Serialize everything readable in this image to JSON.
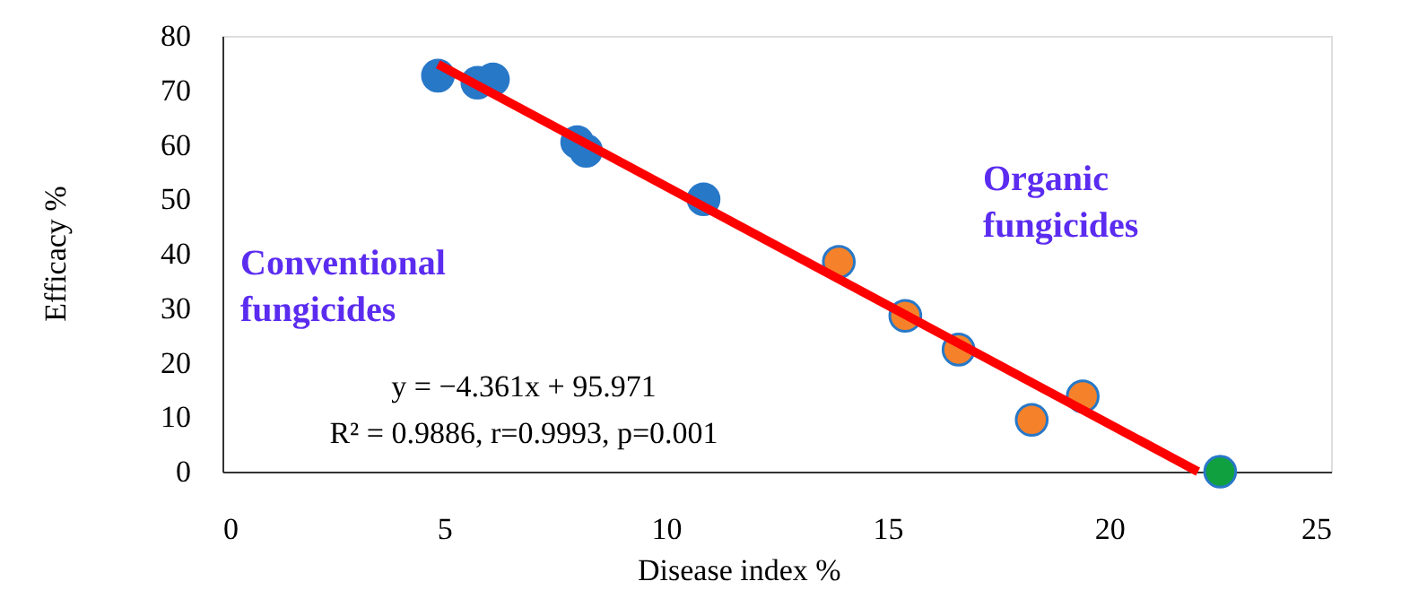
{
  "chart_data": {
    "type": "scatter",
    "xlabel": "Disease index %",
    "ylabel": "Efficacy %",
    "xlim": [
      0,
      25
    ],
    "xticks": [
      0,
      5,
      10,
      15,
      20,
      25
    ],
    "ylim": [
      0,
      80
    ],
    "yticks": [
      0,
      10,
      20,
      30,
      40,
      50,
      60,
      70,
      80
    ],
    "grid": false,
    "marker": "circle",
    "series": [
      {
        "type": "scatter",
        "color": "#2878c8",
        "x": [
          4.86,
          5.75,
          6.1,
          8.0,
          8.2,
          10.85
        ],
        "values": [
          72.7,
          71.4,
          72.0,
          60.5,
          58.9,
          50.0
        ]
      },
      {
        "type": "scatter",
        "color": "#f5822a",
        "x": [
          13.9,
          15.4,
          16.6,
          18.25,
          19.4
        ],
        "values": [
          38.5,
          28.6,
          22.4,
          9.5,
          13.8
        ]
      },
      {
        "type": "scatter",
        "color": "#10a040",
        "x": [
          22.5
        ],
        "values": [
          0
        ]
      },
      {
        "type": "line",
        "color": "#ff0000",
        "line_style": "solid",
        "marker": "none",
        "x": [
          4.86,
          22.0
        ],
        "values": [
          74.8,
          0
        ]
      }
    ],
    "annotations": [
      "Organic fungicides",
      "Conventional fungicides",
      "y = −4.361x + 95.971",
      "R² = 0.9886, r=0.9993, p=0.001"
    ]
  }
}
